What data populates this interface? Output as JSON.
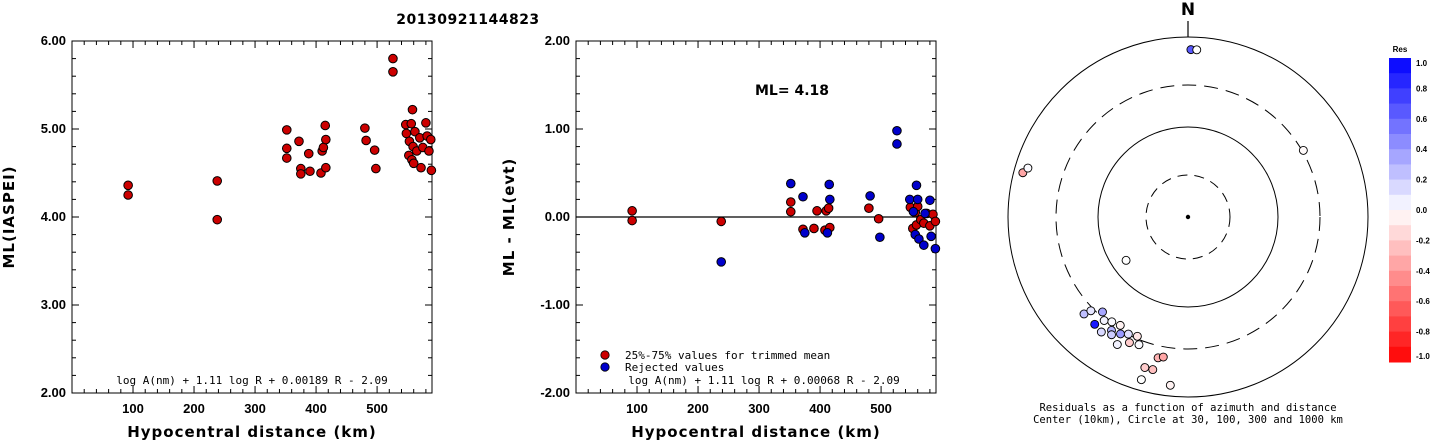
{
  "title": "20130921144823",
  "chart_data": [
    {
      "type": "scatter",
      "xlabel": "Hypocentral distance (km)",
      "ylabel": "ML(IASPEI)",
      "xlim": [
        0,
        590
      ],
      "ylim": [
        2.0,
        6.0
      ],
      "xticks": [
        "100",
        "200",
        "300",
        "400",
        "500"
      ],
      "yticks": [
        "2.00",
        "3.00",
        "4.00",
        "5.00",
        "6.00"
      ],
      "equation": "log A(nm) + 1.11 log R + 0.00189 R - 2.09",
      "points_color": "#cc0000",
      "points": [
        [
          92,
          4.36
        ],
        [
          92,
          4.25
        ],
        [
          238,
          4.41
        ],
        [
          238,
          3.97
        ],
        [
          352,
          4.99
        ],
        [
          352,
          4.78
        ],
        [
          352,
          4.67
        ],
        [
          372,
          4.86
        ],
        [
          375,
          4.55
        ],
        [
          375,
          4.49
        ],
        [
          388,
          4.72
        ],
        [
          390,
          4.52
        ],
        [
          408,
          4.5
        ],
        [
          410,
          4.75
        ],
        [
          412,
          4.79
        ],
        [
          415,
          5.04
        ],
        [
          416,
          4.88
        ],
        [
          416,
          4.56
        ],
        [
          480,
          5.01
        ],
        [
          482,
          4.87
        ],
        [
          496,
          4.76
        ],
        [
          498,
          4.55
        ],
        [
          526,
          5.8
        ],
        [
          526,
          5.65
        ],
        [
          547,
          5.05
        ],
        [
          548,
          4.95
        ],
        [
          552,
          4.7
        ],
        [
          553,
          4.86
        ],
        [
          556,
          5.06
        ],
        [
          557,
          4.65
        ],
        [
          558,
          5.22
        ],
        [
          559,
          4.8
        ],
        [
          560,
          4.61
        ],
        [
          562,
          4.97
        ],
        [
          565,
          4.75
        ],
        [
          570,
          4.9
        ],
        [
          572,
          4.56
        ],
        [
          575,
          4.79
        ],
        [
          580,
          5.07
        ],
        [
          582,
          4.92
        ],
        [
          585,
          4.75
        ],
        [
          588,
          4.88
        ],
        [
          589,
          4.53
        ]
      ]
    },
    {
      "type": "scatter",
      "xlabel": "Hypocentral distance (km)",
      "ylabel": "ML - ML(evt)",
      "xlim": [
        0,
        590
      ],
      "ylim": [
        -2.0,
        2.0
      ],
      "xticks": [
        "100",
        "200",
        "300",
        "400",
        "500"
      ],
      "yticks": [
        "-2.00",
        "-1.00",
        "0.00",
        "1.00",
        "2.00"
      ],
      "annotation": "ML= 4.18",
      "equation": "log A(nm) + 1.11 log R + 0.00068 R - 2.09",
      "legend": [
        {
          "label": "25%-75% values for trimmed mean",
          "color": "#cc0000"
        },
        {
          "label": "Rejected values",
          "color": "#0000cc"
        }
      ],
      "series": [
        {
          "color": "#cc0000",
          "points": [
            [
              92,
              0.07
            ],
            [
              92,
              -0.04
            ],
            [
              238,
              -0.05
            ],
            [
              352,
              0.17
            ],
            [
              352,
              0.06
            ],
            [
              372,
              -0.14
            ],
            [
              390,
              -0.13
            ],
            [
              395,
              0.07
            ],
            [
              408,
              -0.15
            ],
            [
              410,
              0.07
            ],
            [
              414,
              0.1
            ],
            [
              416,
              -0.12
            ],
            [
              480,
              0.1
            ],
            [
              496,
              -0.02
            ],
            [
              548,
              0.11
            ],
            [
              552,
              -0.13
            ],
            [
              556,
              0.05
            ],
            [
              558,
              -0.09
            ],
            [
              560,
              0.12
            ],
            [
              565,
              -0.03
            ],
            [
              570,
              -0.07
            ],
            [
              575,
              0.04
            ],
            [
              580,
              -0.1
            ],
            [
              585,
              0.03
            ],
            [
              589,
              -0.05
            ]
          ]
        },
        {
          "color": "#0000cc",
          "points": [
            [
              238,
              -0.51
            ],
            [
              352,
              0.38
            ],
            [
              372,
              0.23
            ],
            [
              375,
              -0.18
            ],
            [
              412,
              -0.18
            ],
            [
              415,
              0.37
            ],
            [
              416,
              0.2
            ],
            [
              482,
              0.24
            ],
            [
              498,
              -0.23
            ],
            [
              526,
              0.98
            ],
            [
              526,
              0.83
            ],
            [
              547,
              0.2
            ],
            [
              553,
              0.06
            ],
            [
              556,
              -0.2
            ],
            [
              558,
              0.36
            ],
            [
              560,
              0.2
            ],
            [
              562,
              -0.25
            ],
            [
              570,
              -0.32
            ],
            [
              572,
              0.04
            ],
            [
              580,
              0.19
            ],
            [
              582,
              -0.22
            ],
            [
              589,
              -0.36
            ]
          ]
        }
      ]
    },
    {
      "type": "polar-scatter",
      "north_label": "N",
      "caption_line1": "Residuals as a function of azimuth and distance",
      "caption_line2": "Center (10km), Circle at 30, 100, 300 and 1000 km",
      "colorbar_title": "Res",
      "colorbar_ticks": [
        "1.0",
        "0.8",
        "0.6",
        "0.4",
        "0.2",
        "0.0",
        "-0.2",
        "-0.4",
        "-0.6",
        "-0.8",
        "-1.0"
      ],
      "points": [
        {
          "az": 1,
          "r": 0.93,
          "res": 0.65
        },
        {
          "az": 3,
          "r": 0.93,
          "res": 0.0
        },
        {
          "az": 60,
          "r": 0.74,
          "res": -0.02
        },
        {
          "az": 285,
          "r": 0.95,
          "res": -0.35
        },
        {
          "az": 287,
          "r": 0.93,
          "res": 0.02
        },
        {
          "az": 235,
          "r": 0.42,
          "res": 0.0
        },
        {
          "az": 227,
          "r": 0.79,
          "res": 0.25
        },
        {
          "az": 226,
          "r": 0.75,
          "res": 0.1
        },
        {
          "az": 221,
          "r": 0.79,
          "res": 0.9
        },
        {
          "az": 219,
          "r": 0.74,
          "res": 0.05
        },
        {
          "az": 216,
          "r": 0.72,
          "res": 0.02
        },
        {
          "az": 222,
          "r": 0.71,
          "res": 0.35
        },
        {
          "az": 214,
          "r": 0.76,
          "res": 0.3
        },
        {
          "az": 213,
          "r": 0.78,
          "res": 0.2
        },
        {
          "az": 210,
          "r": 0.75,
          "res": 0.4
        },
        {
          "az": 217,
          "r": 0.8,
          "res": 0.15
        },
        {
          "az": 212,
          "r": 0.71,
          "res": -0.05
        },
        {
          "az": 207,
          "r": 0.73,
          "res": 0.12
        },
        {
          "az": 205,
          "r": 0.77,
          "res": -0.2
        },
        {
          "az": 209,
          "r": 0.81,
          "res": 0.05
        },
        {
          "az": 203,
          "r": 0.72,
          "res": -0.1
        },
        {
          "az": 201,
          "r": 0.76,
          "res": 0.02
        },
        {
          "az": 192,
          "r": 0.8,
          "res": -0.3
        },
        {
          "az": 190,
          "r": 0.79,
          "res": -0.35
        },
        {
          "az": 193,
          "r": 0.87,
          "res": -0.25
        },
        {
          "az": 196,
          "r": 0.87,
          "res": -0.2
        },
        {
          "az": 186,
          "r": 0.94,
          "res": -0.05
        },
        {
          "az": 196,
          "r": 0.94,
          "res": 0.0
        }
      ]
    }
  ]
}
